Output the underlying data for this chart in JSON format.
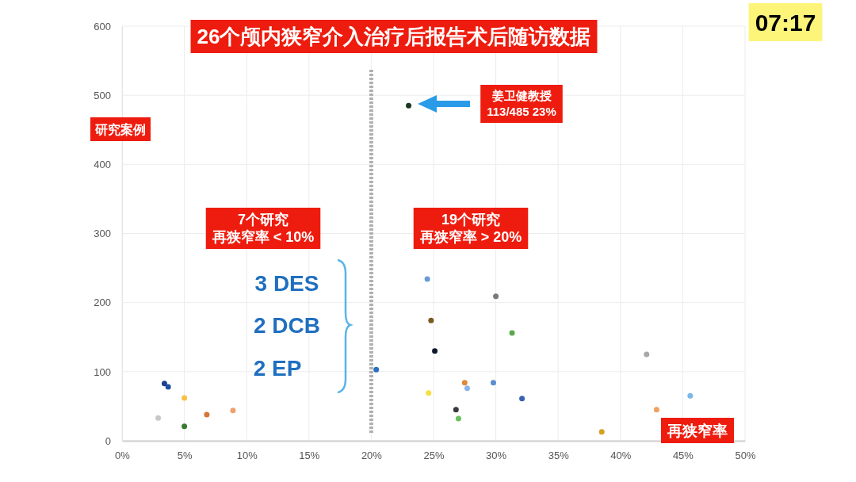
{
  "chart_data": {
    "type": "scatter",
    "title": "26个颅内狭窄介入治疗后报告术后随访数据",
    "xlabel": "再狭窄率",
    "ylabel": "研究案例",
    "x": [
      3.4,
      3.7,
      5,
      2.9,
      5,
      6.8,
      8.9,
      20.4,
      24.5,
      30,
      24.8,
      31.3,
      25.1,
      42.1,
      27.5,
      27.7,
      29.8,
      24.6,
      32.1,
      26.8,
      27,
      45.6,
      42.9,
      38.5,
      23
    ],
    "values": [
      83,
      78,
      62,
      33,
      21,
      38,
      44,
      103,
      234,
      209,
      174,
      156,
      130,
      125,
      84,
      76,
      84,
      69,
      61,
      45,
      32,
      65,
      45,
      13,
      485
    ],
    "colors": [
      "#1f3f8f",
      "#1f4fa0",
      "#f5c242",
      "#c8c8c8",
      "#3a7a30",
      "#d9743a",
      "#f0a070",
      "#2e6fbf",
      "#6a9ad8",
      "#7a7a7a",
      "#7a5a20",
      "#5aaa4a",
      "#101830",
      "#a8a8a8",
      "#e0883a",
      "#8ab4e8",
      "#5a8ed0",
      "#f5e040",
      "#3a62b0",
      "#3a3a40",
      "#6ac060",
      "#7ab8e8",
      "#f0a060",
      "#d4a020",
      "#1a3a20"
    ],
    "xlim": [
      0,
      50
    ],
    "xticks": [
      {
        "value": 0,
        "label": "0%"
      },
      {
        "value": 5,
        "label": "5%"
      },
      {
        "value": 10,
        "label": "10%"
      },
      {
        "value": 15,
        "label": "15%"
      },
      {
        "value": 20,
        "label": "20%"
      },
      {
        "value": 25,
        "label": "25%"
      },
      {
        "value": 30,
        "label": "30%"
      },
      {
        "value": 35,
        "label": "35%"
      },
      {
        "value": 40,
        "label": "40%"
      },
      {
        "value": 45,
        "label": "45%"
      },
      {
        "value": 50,
        "label": "50%"
      }
    ],
    "ylim": [
      0,
      600
    ],
    "yticks": [
      0,
      100,
      200,
      300,
      400,
      500,
      600
    ],
    "grid": true,
    "marker": "circle",
    "ref_lines": [
      {
        "axis": "x",
        "value": 20,
        "color": "#b0b0b0",
        "line_style": "dashed"
      }
    ],
    "annotations": [
      "姜卫健教授",
      "113/485 23%",
      "7个研究",
      "再狭窄率 < 10%",
      "19个研究",
      "再狭窄率 > 20%",
      "3 DES",
      "2 DCB",
      "2 EP",
      "07:17"
    ]
  }
}
